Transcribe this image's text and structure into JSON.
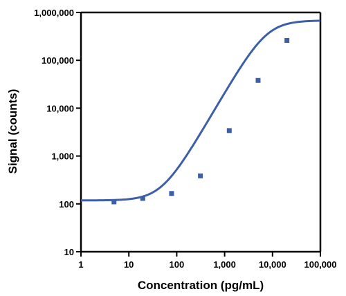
{
  "chart_data": {
    "type": "scatter",
    "xlabel": "Concentration (pg/mL)",
    "ylabel": "Signal (counts)",
    "x_scale": "log",
    "y_scale": "log",
    "xlim": [
      1,
      100000
    ],
    "ylim": [
      10,
      1000000
    ],
    "x_ticks": [
      {
        "value": 1,
        "label": "1"
      },
      {
        "value": 10,
        "label": "10"
      },
      {
        "value": 100,
        "label": "100"
      },
      {
        "value": 1000,
        "label": "1,000"
      },
      {
        "value": 10000,
        "label": "10,000"
      },
      {
        "value": 100000,
        "label": "100,000"
      }
    ],
    "y_ticks": [
      {
        "value": 10,
        "label": "10"
      },
      {
        "value": 100,
        "label": "100"
      },
      {
        "value": 1000,
        "label": "1,000"
      },
      {
        "value": 10000,
        "label": "10,000"
      },
      {
        "value": 100000,
        "label": "100,000"
      },
      {
        "value": 1000000,
        "label": "1,000,000"
      }
    ],
    "grid": false,
    "legend": "none",
    "series": [
      {
        "points": [
          {
            "x": 4.9,
            "y": 110
          },
          {
            "x": 19.5,
            "y": 130
          },
          {
            "x": 78,
            "y": 165
          },
          {
            "x": 312,
            "y": 385
          },
          {
            "x": 1250,
            "y": 3400
          },
          {
            "x": 5000,
            "y": 38000
          },
          {
            "x": 20000,
            "y": 260000
          }
        ],
        "fit_curve": {
          "model": "4PL",
          "bottom": 118,
          "top": 680000,
          "ec50": 7500,
          "hill": 1.72
        },
        "color": "#3d5fa8"
      }
    ]
  }
}
